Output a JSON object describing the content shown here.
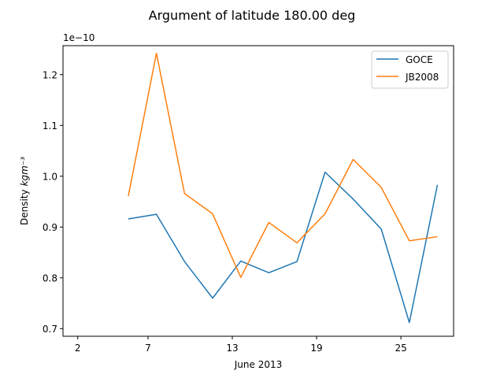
{
  "chart_data": {
    "type": "line",
    "title": "Argument of latitude 180.00 deg",
    "xlabel": "June 2013",
    "ylabel": "Density",
    "ylabel_unit": "kgm⁻³",
    "y_offset_label": "1e−10",
    "y_scale": 1e-10,
    "x_unit": "day of June 2013",
    "xlim": [
      0.95,
      28.75
    ],
    "ylim": [
      0.685,
      1.257
    ],
    "x_ticks": [
      2,
      7,
      13,
      19,
      25
    ],
    "x_tick_labels": [
      "2",
      "7",
      "13",
      "19",
      "25"
    ],
    "y_ticks": [
      0.7,
      0.8,
      0.9,
      1.0,
      1.1,
      1.2
    ],
    "y_tick_labels": [
      "0.7",
      "0.8",
      "0.9",
      "1.0",
      "1.1",
      "1.2"
    ],
    "grid": false,
    "legend_position": "top-right",
    "x": [
      5.6,
      7.6,
      9.6,
      11.6,
      13.6,
      15.6,
      17.6,
      19.6,
      21.6,
      23.6,
      25.6,
      27.6
    ],
    "series": [
      {
        "name": "GOCE",
        "color": "#1f77b4",
        "values": [
          0.916,
          0.925,
          0.832,
          0.76,
          0.833,
          0.81,
          0.832,
          1.008,
          0.955,
          0.896,
          0.712,
          0.983
        ]
      },
      {
        "name": "JB2008",
        "color": "#ff7f0e",
        "values": [
          0.961,
          1.242,
          0.966,
          0.926,
          0.801,
          0.909,
          0.869,
          0.926,
          1.033,
          0.978,
          0.873,
          0.881
        ]
      }
    ]
  }
}
